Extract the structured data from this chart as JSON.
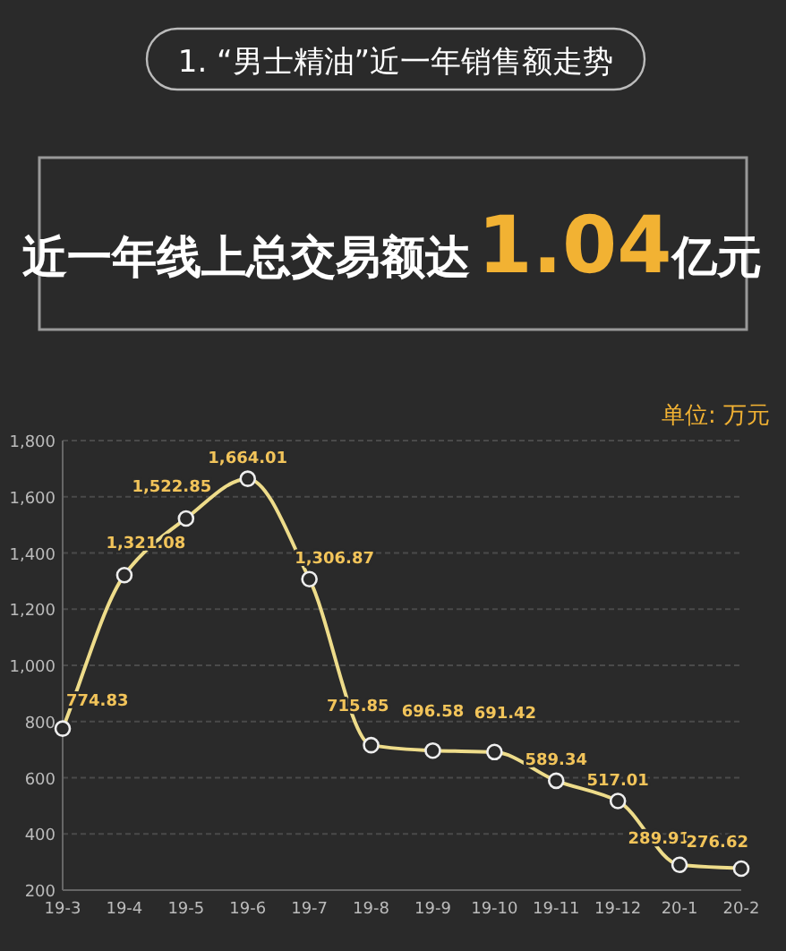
{
  "chart_data": {
    "type": "line",
    "title": "1. “男士精油”近一年销售额走势",
    "subtitle": "近一年线上总交易额达1.04亿元",
    "ylabel": "单位: 万元",
    "categories": [
      "19-3",
      "19-4",
      "19-5",
      "19-6",
      "19-7",
      "19-8",
      "19-9",
      "19-10",
      "19-11",
      "19-12",
      "20-1",
      "20-2"
    ],
    "series": [
      {
        "color": "#eedc8a",
        "values": [
          774.83,
          1321.08,
          1522.85,
          1664.01,
          1306.87,
          715.85,
          696.58,
          691.42,
          589.34,
          517.01,
          289.91,
          276.62
        ],
        "value_labels": [
          "774.83",
          "1,321.08",
          "1,522.85",
          "1,664.01",
          "1,306.87",
          "715.85",
          "696.58",
          "691.42",
          "589.34",
          "517.01",
          "289.91",
          "276.62"
        ]
      }
    ],
    "ylim": [
      200,
      1800
    ],
    "yticks": [
      {
        "value": 200,
        "label": "200"
      },
      {
        "value": 400,
        "label": "400"
      },
      {
        "value": 600,
        "label": "600"
      },
      {
        "value": 800,
        "label": "800"
      },
      {
        "value": 1000,
        "label": "1,000"
      },
      {
        "value": 1200,
        "label": "1,200"
      },
      {
        "value": 1400,
        "label": "1,400"
      },
      {
        "value": 1600,
        "label": "1,600"
      },
      {
        "value": 1800,
        "label": "1,800"
      }
    ],
    "grid": "y",
    "marker": "circle",
    "line_style": "solid"
  }
}
